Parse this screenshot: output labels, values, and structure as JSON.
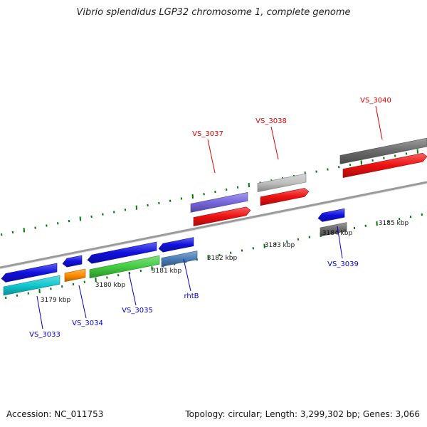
{
  "title": "Vibrio splendidus LGP32 chromosome 1, complete genome",
  "footer": {
    "accession": "Accession: NC_011753",
    "summary": "Topology: circular; Length: 3,299,302 bp; Genes: 3,066"
  },
  "colors": {
    "forward_label": "#dd0000",
    "reverse_label": "#0000cc",
    "backbone": "#888888",
    "ticks": "#007700"
  },
  "tick_labels": [
    "3179 kbp",
    "3180 kbp",
    "3181 kbp",
    "3182 kbp",
    "3183 kbp",
    "3184 kbp",
    "3185 kbp"
  ],
  "gene_labels": [
    {
      "name": "VS_3033",
      "strand": "reverse"
    },
    {
      "name": "VS_3034",
      "strand": "reverse"
    },
    {
      "name": "VS_3035",
      "strand": "reverse"
    },
    {
      "name": "rhtB",
      "strand": "reverse"
    },
    {
      "name": "VS_3037",
      "strand": "forward"
    },
    {
      "name": "VS_3038",
      "strand": "forward"
    },
    {
      "name": "VS_3039",
      "strand": "reverse"
    },
    {
      "name": "VS_3040",
      "strand": "forward"
    }
  ],
  "feature_colors": {
    "cds": "#1010e0",
    "cds_forward": "#ee1010",
    "gene_cyan": "#10c8d0",
    "gene_orange": "#ff8c00",
    "gene_green": "#40cc40",
    "gene_steelblue": "#4a7fb8",
    "gene_slate": "#7766dd",
    "gene_grey": "#c0c0c0",
    "gene_darkgrey": "#6a6a6a"
  }
}
